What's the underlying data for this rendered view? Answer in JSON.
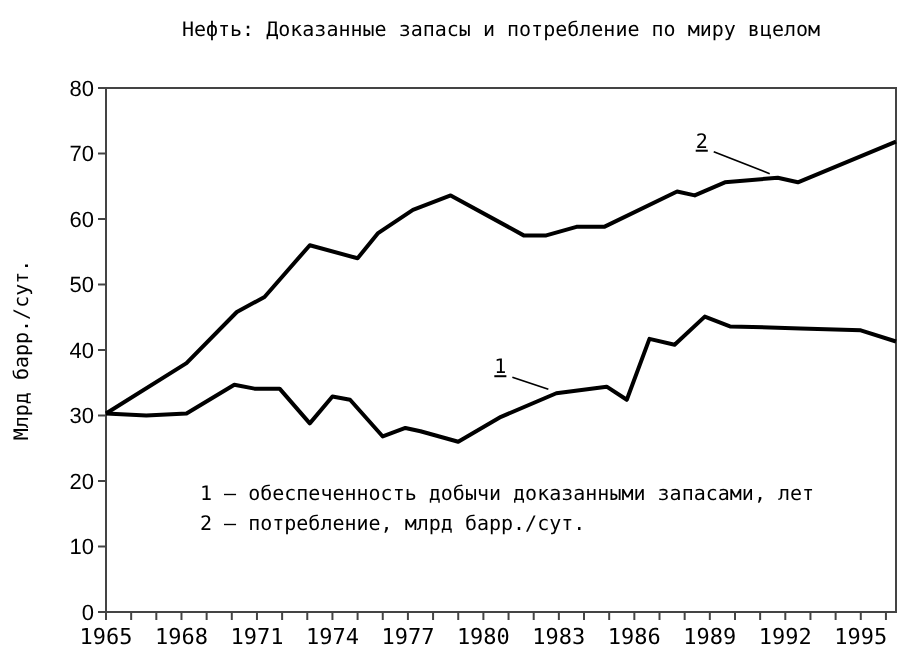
{
  "chart_data": {
    "type": "line",
    "title": "Нефть: Доказанные запасы и потребление по миру вцелом",
    "ylabel": "Млрд барр./сут.",
    "xlim": [
      1965,
      1996.4
    ],
    "ylim": [
      0,
      80
    ],
    "yticks": [
      0,
      10,
      20,
      30,
      40,
      50,
      60,
      70,
      80
    ],
    "xticks": [
      1965,
      {
        "value": 1966,
        "label": null
      },
      {
        "value": 1967,
        "label": null
      },
      1968,
      {
        "value": 1969,
        "label": null
      },
      {
        "value": 1970,
        "label": null
      },
      1971,
      {
        "value": 1972,
        "label": null
      },
      {
        "value": 1973,
        "label": null
      },
      1974,
      {
        "value": 1975,
        "label": null
      },
      {
        "value": 1976,
        "label": null
      },
      1977,
      {
        "value": 1978,
        "label": null
      },
      {
        "value": 1979,
        "label": null
      },
      1980,
      {
        "value": 1981,
        "label": null
      },
      {
        "value": 1982,
        "label": null
      },
      1983,
      {
        "value": 1984,
        "label": null
      },
      {
        "value": 1985,
        "label": null
      },
      1986,
      {
        "value": 1987,
        "label": null
      },
      {
        "value": 1988,
        "label": null
      },
      1989,
      {
        "value": 1990,
        "label": null
      },
      {
        "value": 1991,
        "label": null
      },
      1992,
      {
        "value": 1993,
        "label": null
      },
      {
        "value": 1994,
        "label": null
      },
      1995,
      {
        "value": 1996,
        "label": null
      }
    ],
    "grid": false,
    "marker": "none",
    "line_style": "solid",
    "annotations": [
      "1 – обеспеченность добычи доказанными запасами, лет",
      "2 – потребление, млрд барр./сут."
    ],
    "series": [
      {
        "name": "1",
        "color": "#000000",
        "x": [
          1965,
          1966.6,
          1968.2,
          1970.1,
          1970.9,
          1971.9,
          1973.1,
          1974,
          1974.7,
          1976,
          1976.9,
          1977.5,
          1979,
          1980.7,
          1982.9,
          1984.9,
          1985.7,
          1986.6,
          1987.6,
          1988.8,
          1989.8,
          1992.6,
          1995,
          1996.4
        ],
        "values": [
          30.3,
          30,
          30.3,
          34.7,
          34.1,
          34.1,
          28.8,
          32.9,
          32.4,
          26.8,
          28.1,
          27.6,
          26,
          29.8,
          33.4,
          34.4,
          32.4,
          41.7,
          40.8,
          45.1,
          43.6,
          43.3,
          43,
          41.3
        ]
      },
      {
        "name": "2",
        "color": "#000000",
        "x": [
          1965,
          1968.2,
          1970.2,
          1971.3,
          1973.1,
          1975,
          1975.8,
          1977.2,
          1978.7,
          1981.6,
          1982.5,
          1983.7,
          1984.8,
          1987.7,
          1988.4,
          1989.6,
          1991.7,
          1992.5,
          1996.4
        ],
        "values": [
          30.3,
          38,
          45.8,
          48.1,
          56,
          54,
          57.8,
          61.4,
          63.6,
          57.5,
          57.5,
          58.8,
          58.8,
          64.2,
          63.6,
          65.6,
          66.3,
          65.6,
          71.8
        ]
      }
    ]
  }
}
